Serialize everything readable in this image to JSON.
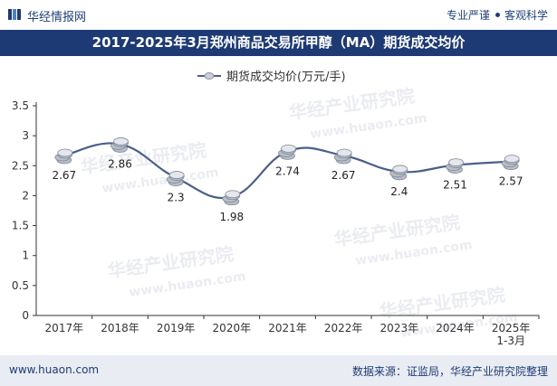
{
  "brand": "华经情报网",
  "tags": [
    "专业严谨",
    "客观科学"
  ],
  "title": "2017-2025年3月郑州商品交易所甲醇（MA）期货成交均价",
  "footer": {
    "url": "www.huaon.com",
    "source": "数据来源：证监局，华经产业研究院整理"
  },
  "watermarks": [
    "华经产业研究院",
    "www.huaon.com"
  ],
  "chart_data": {
    "type": "line",
    "title": "2017-2025年3月郑州商品交易所甲醇（MA）期货成交均价",
    "legend": "期货成交均价(万元/手)",
    "legend_position": "top-center",
    "categories": [
      "2017年",
      "2018年",
      "2019年",
      "2020年",
      "2021年",
      "2022年",
      "2023年",
      "2024年",
      "2025年\n1-3月"
    ],
    "series": [
      {
        "name": "期货成交均价(万元/手)",
        "values": [
          2.67,
          2.86,
          2.3,
          1.98,
          2.74,
          2.67,
          2.4,
          2.51,
          2.57
        ]
      }
    ],
    "data_labels": [
      "2.67",
      "2.86",
      "2.3",
      "1.98",
      "2.74",
      "2.67",
      "2.4",
      "2.51",
      "2.57"
    ],
    "y_ticks": [
      "0",
      "0.5",
      "1",
      "1.5",
      "2",
      "2.5",
      "3",
      "3.5"
    ],
    "ylim": [
      0,
      3.5
    ],
    "colors": {
      "line": "#4a5f88",
      "coin": "#c9ced6",
      "axis": "#333333"
    }
  }
}
